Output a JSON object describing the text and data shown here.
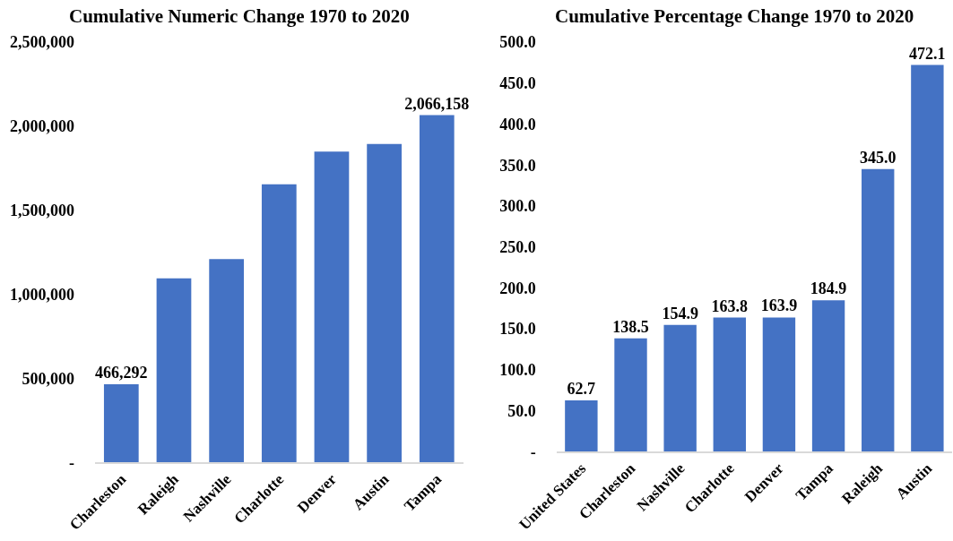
{
  "chart_data": [
    {
      "type": "bar",
      "title": "Cumulative Numeric Change 1970 to 2020",
      "categories": [
        "Charleston",
        "Raleigh",
        "Nashville",
        "Charlotte",
        "Denver",
        "Austin",
        "Tampa"
      ],
      "values": [
        466292,
        1095000,
        1210000,
        1655000,
        1850000,
        1895000,
        2066158
      ],
      "value_labels": [
        "466,292",
        null,
        null,
        null,
        null,
        null,
        "2,066,158"
      ],
      "color": "#4472c4",
      "ylim": [
        0,
        2500000
      ],
      "yticks": [
        {
          "value": 0,
          "label": "-"
        },
        {
          "value": 500000,
          "label": "500,000"
        },
        {
          "value": 1000000,
          "label": "1,000,000"
        },
        {
          "value": 1500000,
          "label": "1,500,000"
        },
        {
          "value": 2000000,
          "label": "2,000,000"
        },
        {
          "value": 2500000,
          "label": "2,500,000"
        }
      ]
    },
    {
      "type": "bar",
      "title": "Cumulative Percentage Change 1970 to 2020",
      "categories": [
        "United States",
        "Charleston",
        "Nashville",
        "Charlotte",
        "Denver",
        "Tampa",
        "Raleigh",
        "Austin"
      ],
      "values": [
        62.7,
        138.5,
        154.9,
        163.8,
        163.9,
        184.9,
        345.0,
        472.1
      ],
      "value_labels": [
        "62.7",
        "138.5",
        "154.9",
        "163.8",
        "163.9",
        "184.9",
        "345.0",
        "472.1"
      ],
      "color": "#4472c4",
      "ylim": [
        0,
        500
      ],
      "yticks": [
        {
          "value": 0,
          "label": "-"
        },
        {
          "value": 50,
          "label": "50.0"
        },
        {
          "value": 100,
          "label": "100.0"
        },
        {
          "value": 150,
          "label": "150.0"
        },
        {
          "value": 200,
          "label": "200.0"
        },
        {
          "value": 250,
          "label": "250.0"
        },
        {
          "value": 300,
          "label": "300.0"
        },
        {
          "value": 350,
          "label": "350.0"
        },
        {
          "value": 400,
          "label": "400.0"
        },
        {
          "value": 450,
          "label": "450.0"
        },
        {
          "value": 500,
          "label": "500.0"
        }
      ]
    }
  ]
}
